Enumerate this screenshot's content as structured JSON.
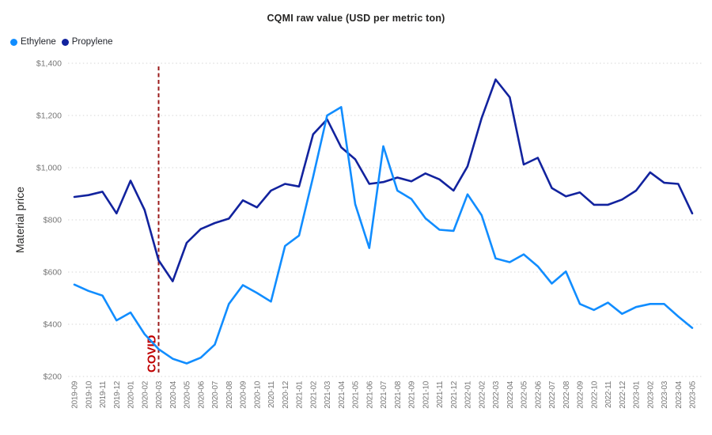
{
  "title": "CQMI raw value (USD per metric ton)",
  "legend": {
    "items": [
      {
        "label": "Ethylene",
        "color": "#118DFF"
      },
      {
        "label": "Propylene",
        "color": "#12239E"
      }
    ]
  },
  "y_axis": {
    "title": "Material price",
    "ticks": [
      "$200",
      "$400",
      "$600",
      "$800",
      "$1,000",
      "$1,200",
      "$1,400"
    ]
  },
  "annotation": {
    "label": "COVID",
    "month": "2020-03",
    "label_color": "#C00000",
    "line_color": "#9B1B1B"
  },
  "chart_data": {
    "type": "line",
    "title": "CQMI raw value (USD per metric ton)",
    "xlabel": "",
    "ylabel": "Material price",
    "ylim": [
      200,
      1400
    ],
    "y_tick_step": 200,
    "grid": "dotted-horizontal",
    "legend_position": "top-left",
    "annotation_line": {
      "x": "2020-03",
      "label": "COVID"
    },
    "x": [
      "2019-09",
      "2019-10",
      "2019-11",
      "2019-12",
      "2020-01",
      "2020-02",
      "2020-03",
      "2020-04",
      "2020-05",
      "2020-06",
      "2020-07",
      "2020-08",
      "2020-09",
      "2020-10",
      "2020-11",
      "2020-12",
      "2021-01",
      "2021-02",
      "2021-03",
      "2021-04",
      "2021-05",
      "2021-06",
      "2021-07",
      "2021-08",
      "2021-09",
      "2021-10",
      "2021-11",
      "2021-12",
      "2022-01",
      "2022-02",
      "2022-03",
      "2022-04",
      "2022-05",
      "2022-06",
      "2022-07",
      "2022-08",
      "2022-09",
      "2022-10",
      "2022-11",
      "2022-12",
      "2023-01",
      "2023-02",
      "2023-03",
      "2023-04",
      "2023-05"
    ],
    "series": [
      {
        "name": "Ethylene",
        "color": "#118DFF",
        "values": [
          552,
          528,
          510,
          415,
          445,
          362,
          305,
          268,
          250,
          272,
          322,
          478,
          550,
          520,
          487,
          700,
          740,
          965,
          1200,
          1232,
          860,
          692,
          1082,
          912,
          880,
          806,
          762,
          758,
          898,
          818,
          652,
          638,
          668,
          622,
          556,
          602,
          478,
          455,
          483,
          440,
          466,
          478,
          478,
          430,
          386
        ]
      },
      {
        "name": "Propylene",
        "color": "#12239E",
        "values": [
          888,
          895,
          908,
          825,
          950,
          838,
          645,
          565,
          712,
          765,
          788,
          805,
          875,
          848,
          912,
          938,
          928,
          1128,
          1185,
          1078,
          1032,
          938,
          945,
          962,
          948,
          978,
          955,
          912,
          1005,
          1190,
          1338,
          1270,
          1012,
          1038,
          922,
          890,
          905,
          858,
          858,
          878,
          912,
          982,
          942,
          938,
          825
        ]
      }
    ]
  }
}
